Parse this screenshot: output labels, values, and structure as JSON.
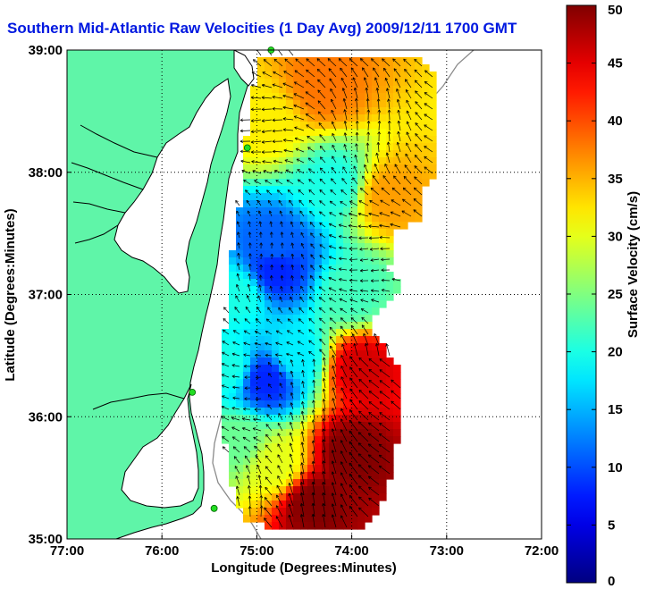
{
  "title": "Southern Mid-Atlantic Raw Velocities (1 Day Avg) 2009/12/11 1700 GMT",
  "xlabel": "Longitude (Degrees:Minutes)",
  "ylabel": "Latitude (Degrees:Minutes)",
  "colorbar_label": "Surface Velocity (cm/s)",
  "colors": {
    "land": "#5ff5a8",
    "coast_line": "#000000",
    "grid": "#000000",
    "shelf_line": "#8a8a8a",
    "station": "#22dd22"
  },
  "chart_data": {
    "type": "heatmap",
    "x_ticks": [
      "77:00",
      "76:00",
      "75:00",
      "74:00",
      "73:00",
      "72:00"
    ],
    "x_tick_values": [
      -77,
      -76,
      -75,
      -74,
      -73,
      -72
    ],
    "y_ticks": [
      "39:00",
      "38:00",
      "37:00",
      "36:00",
      "35:00"
    ],
    "y_tick_values": [
      39,
      38,
      37,
      36,
      35
    ],
    "xlim": [
      -77,
      -72
    ],
    "ylim": [
      35,
      39
    ],
    "colorbar": {
      "range": [
        0,
        50
      ],
      "ticks": [
        0,
        5,
        10,
        15,
        20,
        25,
        30,
        35,
        40,
        45,
        50
      ],
      "tick_labels": [
        "0",
        "5",
        "10",
        "15",
        "20",
        "25",
        "30",
        "35",
        "40",
        "45",
        "50"
      ]
    },
    "grid": "dotted",
    "field_centers": [
      {
        "lon": -74.3,
        "lat": 38.7,
        "speed": 38
      },
      {
        "lon": -74.9,
        "lat": 38.4,
        "speed": 32
      },
      {
        "lon": -73.6,
        "lat": 37.8,
        "speed": 36
      },
      {
        "lon": -74.2,
        "lat": 37.9,
        "speed": 20
      },
      {
        "lon": -74.8,
        "lat": 37.4,
        "speed": 11
      },
      {
        "lon": -74.8,
        "lat": 37.2,
        "speed": 8
      },
      {
        "lon": -74.0,
        "lat": 37.0,
        "speed": 22
      },
      {
        "lon": -75.2,
        "lat": 37.0,
        "speed": 20
      },
      {
        "lon": -74.6,
        "lat": 36.5,
        "speed": 18
      },
      {
        "lon": -74.9,
        "lat": 36.3,
        "speed": 8
      },
      {
        "lon": -75.3,
        "lat": 36.4,
        "speed": 20
      },
      {
        "lon": -73.9,
        "lat": 36.4,
        "speed": 46
      },
      {
        "lon": -74.0,
        "lat": 35.7,
        "speed": 50
      },
      {
        "lon": -74.4,
        "lat": 35.3,
        "speed": 50
      },
      {
        "lon": -74.8,
        "lat": 35.6,
        "speed": 30
      },
      {
        "lon": -75.2,
        "lat": 35.8,
        "speed": 24
      }
    ],
    "stations": [
      {
        "lon": -74.85,
        "lat": 39.0
      },
      {
        "lon": -75.1,
        "lat": 38.2
      },
      {
        "lon": -75.68,
        "lat": 36.2
      },
      {
        "lon": -75.45,
        "lat": 35.25
      }
    ]
  }
}
